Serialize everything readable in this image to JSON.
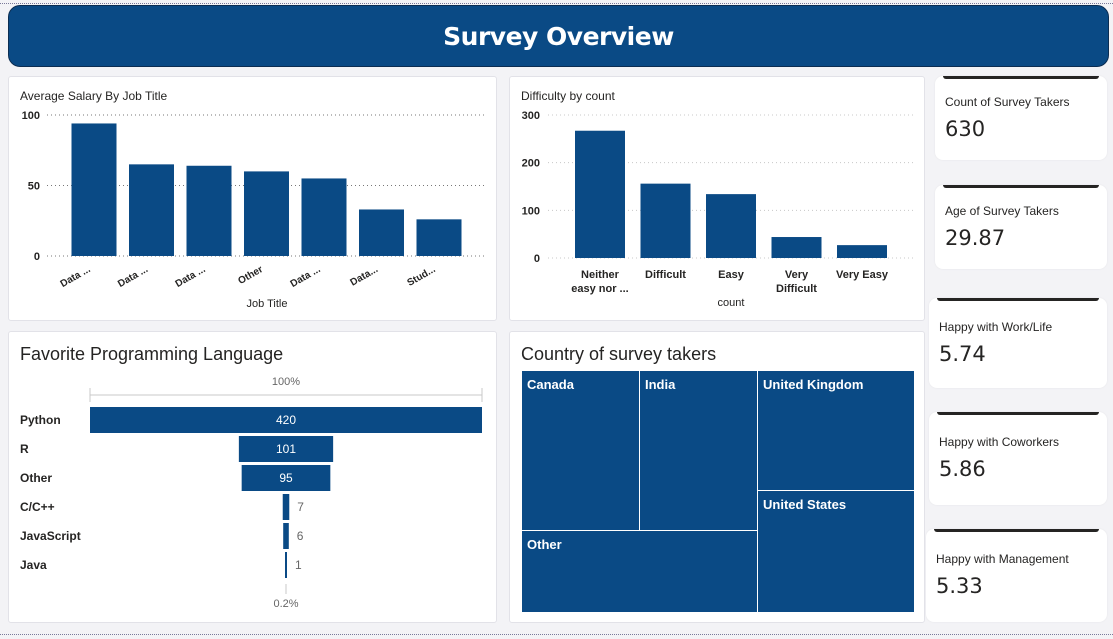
{
  "header": {
    "title": "Survey Overview"
  },
  "colors": {
    "primary": "#0a4a85",
    "grid": "#bfbfbf",
    "background": "#f3f3f6"
  },
  "charts": {
    "salary": {
      "title": "Average Salary By Job Title",
      "xlabel": "Job Title"
    },
    "difficulty": {
      "title": "Difficulty by count",
      "xlabel": "count"
    },
    "language": {
      "title": "Favorite Programming Language",
      "top_pct": "100%",
      "bottom_pct": "0.2%"
    },
    "country": {
      "title": "Country of survey takers"
    }
  },
  "chart_data": [
    {
      "type": "bar",
      "title": "Average Salary By Job Title",
      "xlabel": "Job Title",
      "ylabel": "",
      "categories": [
        "Data ...",
        "Data ...",
        "Data ...",
        "Other",
        "Data ...",
        "Data...",
        "Stud..."
      ],
      "values": [
        94,
        65,
        64,
        60,
        55,
        33,
        26
      ],
      "ylim": [
        0,
        100
      ],
      "yticks": [
        0,
        50,
        100
      ],
      "grid": true
    },
    {
      "type": "bar",
      "title": "Difficulty by count",
      "xlabel": "count",
      "ylabel": "",
      "categories": [
        "Neither easy nor ...",
        "Difficult",
        "Easy",
        "Very Difficult",
        "Very Easy"
      ],
      "category_lines": [
        [
          "Neither",
          "easy nor ..."
        ],
        [
          "Difficult"
        ],
        [
          "Easy"
        ],
        [
          "Very",
          "Difficult"
        ],
        [
          "Very Easy"
        ]
      ],
      "values": [
        267,
        156,
        134,
        44,
        27
      ],
      "ylim": [
        0,
        300
      ],
      "yticks": [
        0,
        100,
        200,
        300
      ],
      "grid": true
    },
    {
      "type": "bar",
      "subtype": "funnel",
      "title": "Favorite Programming Language",
      "categories": [
        "Python",
        "R",
        "Other",
        "C/C++",
        "JavaScript",
        "Java"
      ],
      "values": [
        420,
        101,
        95,
        7,
        6,
        1
      ]
    },
    {
      "type": "table",
      "subtype": "treemap",
      "title": "Country of survey takers",
      "categories": [
        "Canada",
        "India",
        "United Kingdom",
        "United States",
        "Other"
      ]
    }
  ],
  "cards": [
    {
      "label": "Count of Survey Takers",
      "value": "630"
    },
    {
      "label": "Age of Survey Takers",
      "value": "29.87"
    },
    {
      "label": "Happy with Work/Life",
      "value": "5.74"
    },
    {
      "label": "Happy with Coworkers",
      "value": "5.86"
    },
    {
      "label": "Happy with Management",
      "value": "5.33"
    }
  ]
}
